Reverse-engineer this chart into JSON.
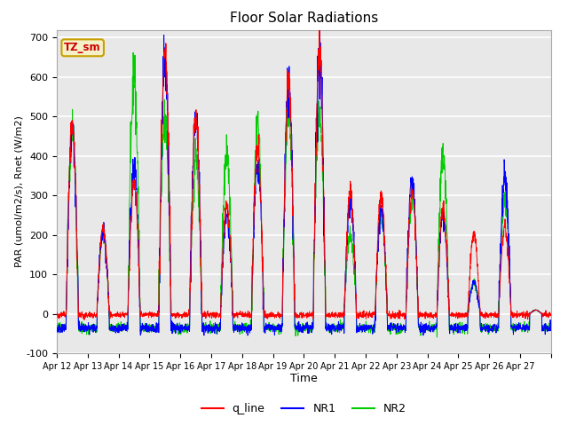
{
  "title": "Floor Solar Radiations",
  "xlabel": "Time",
  "ylabel": "PAR (umol/m2/s), Rnet (W/m2)",
  "ylim": [
    -100,
    720
  ],
  "yticks": [
    -100,
    0,
    100,
    200,
    300,
    400,
    500,
    600,
    700
  ],
  "xtick_labels": [
    "Apr 12",
    "Apr 13",
    "Apr 14",
    "Apr 15",
    "Apr 16",
    "Apr 17",
    "Apr 18",
    "Apr 19",
    "Apr 20",
    "Apr 21",
    "Apr 22",
    "Apr 23",
    "Apr 24",
    "Apr 25",
    "Apr 26",
    "Apr 27"
  ],
  "bg_color": "#e8e8e8",
  "legend_label": "TZ_sm",
  "legend_box_facecolor": "#f5f0c8",
  "legend_box_edgecolor": "#c8a000",
  "line_colors": {
    "q_line": "#ff0000",
    "NR1": "#0000ff",
    "NR2": "#00cc00"
  },
  "n_days": 16,
  "points_per_day": 144,
  "q_peaks": [
    480,
    220,
    330,
    670,
    500,
    275,
    420,
    600,
    660,
    310,
    300,
    310,
    270,
    200,
    220,
    10
  ],
  "nr1_peaks": [
    470,
    210,
    380,
    650,
    500,
    250,
    380,
    590,
    650,
    290,
    260,
    340,
    250,
    80,
    350,
    10
  ],
  "nr2_peaks": [
    470,
    210,
    620,
    505,
    390,
    400,
    480,
    520,
    520,
    205,
    250,
    300,
    400,
    80,
    290,
    10
  ],
  "day_start": 0.3,
  "day_end": 0.7,
  "q_night": -2,
  "nr_night": -35
}
